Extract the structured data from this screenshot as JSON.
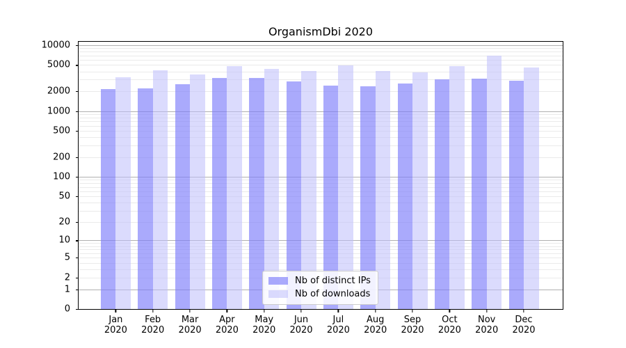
{
  "chart_data": {
    "type": "bar",
    "title": "OrganismDbi 2020",
    "year": "2020",
    "categories": [
      "Jan",
      "Feb",
      "Mar",
      "Apr",
      "May",
      "Jun",
      "Jul",
      "Aug",
      "Sep",
      "Oct",
      "Nov",
      "Dec"
    ],
    "series": [
      {
        "name": "Nb of distinct IPs",
        "color": "rgba(125,125,250,0.65)",
        "values": [
          2150,
          2200,
          2570,
          3190,
          3190,
          2830,
          2460,
          2350,
          2610,
          3020,
          3130,
          2880
        ]
      },
      {
        "name": "Nb of downloads",
        "color": "rgba(190,190,252,0.55)",
        "values": [
          3290,
          4170,
          3610,
          4790,
          4380,
          4040,
          4910,
          4050,
          3850,
          4790,
          7000,
          4540
        ]
      }
    ],
    "xlabel": "",
    "ylabel": "",
    "ylim": [
      0,
      10000
    ],
    "yscale": "log(value+1)",
    "yticks": [
      10000,
      5000,
      2000,
      1000,
      500,
      200,
      100,
      50,
      20,
      10,
      5,
      2,
      1,
      0
    ],
    "grid": {
      "major_gridline_color": "#b0b0b0",
      "minor_gridline_color": "#eaeaea"
    },
    "legend_position": "lower center"
  }
}
